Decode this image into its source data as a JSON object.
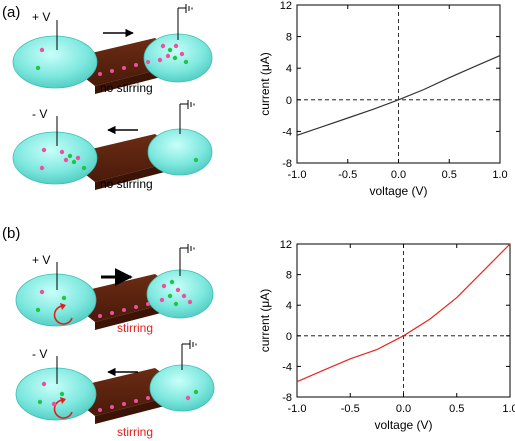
{
  "panels": [
    {
      "label": "(a)",
      "top_voltage": "+ V",
      "top_caption": "no stirring",
      "bottom_voltage": "- V",
      "bottom_caption": "no stirring"
    },
    {
      "label": "(b)",
      "top_voltage": "+ V",
      "top_caption": "stirring",
      "bottom_voltage": "- V",
      "bottom_caption": "stirring"
    }
  ],
  "colors": {
    "no_stirring_caption": "#000000",
    "stirring_caption": "#e0201c",
    "droplet": "#7ee8df",
    "droplet_edge": "#3cbfb4",
    "bridge": "#5a2310",
    "particle_pink": "#ee4f9f",
    "particle_green": "#22c443",
    "curve_a": "#333333",
    "curve_b": "#e8261e"
  },
  "chart_data": [
    {
      "type": "line",
      "xlabel": "voltage (V)",
      "ylabel": "current (μA)",
      "xlim": [
        -1.0,
        1.0
      ],
      "ylim": [
        -8,
        12
      ],
      "xticks": [
        "-1.0",
        "-0.5",
        "0.0",
        "0.5",
        "1.0"
      ],
      "yticks": [
        "12",
        "8",
        "4",
        "0",
        "-4",
        "-8"
      ],
      "reference_lines": "dashed at x=0 and y=0",
      "x": [
        -1.0,
        -0.75,
        -0.5,
        -0.25,
        0.0,
        0.25,
        0.5,
        0.75,
        1.0
      ],
      "series": [
        {
          "values": [
            -4.5,
            -3.4,
            -2.3,
            -1.2,
            0.0,
            1.3,
            2.8,
            4.2,
            5.6
          ]
        }
      ]
    },
    {
      "type": "line",
      "xlabel": "voltage (V)",
      "ylabel": "current (μA)",
      "xlim": [
        -1.0,
        1.0
      ],
      "ylim": [
        -8,
        12
      ],
      "xticks": [
        "-1.0",
        "-0.5",
        "0.0",
        "0.5",
        "1.0"
      ],
      "yticks": [
        "12",
        "8",
        "4",
        "0",
        "-4",
        "-8"
      ],
      "reference_lines": "dashed at x=0 and y=0",
      "x": [
        -1.0,
        -0.75,
        -0.5,
        -0.25,
        0.0,
        0.25,
        0.5,
        0.75,
        1.0
      ],
      "series": [
        {
          "values": [
            -6.0,
            -4.5,
            -3.0,
            -1.8,
            0.0,
            2.2,
            5.0,
            8.5,
            12.0
          ]
        }
      ]
    }
  ]
}
